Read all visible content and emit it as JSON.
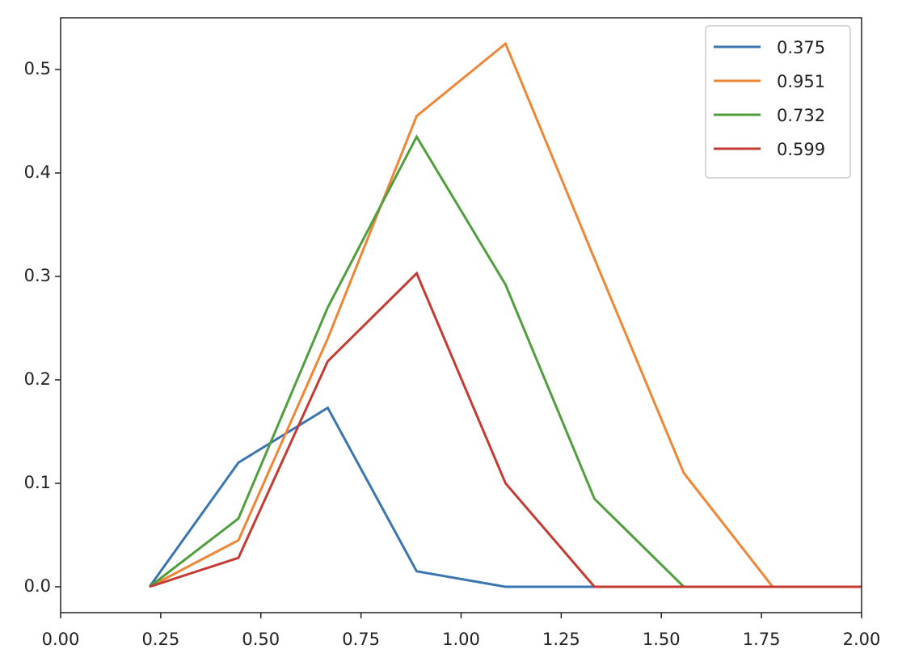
{
  "chart_data": {
    "type": "line",
    "x": [
      0.222,
      0.444,
      0.667,
      0.889,
      1.111,
      1.333,
      1.556,
      1.778,
      2.0
    ],
    "series": [
      {
        "name": "0.375",
        "color": "#3b75af",
        "values": [
          0,
          0.12,
          0.173,
          0.015,
          0,
          0,
          0,
          0,
          0
        ]
      },
      {
        "name": "0.951",
        "color": "#ef8636",
        "values": [
          0,
          0.045,
          0.24,
          0.455,
          0.525,
          0.317,
          0.11,
          0,
          0
        ]
      },
      {
        "name": "0.732",
        "color": "#519e3e",
        "values": [
          0,
          0.066,
          0.27,
          0.435,
          0.292,
          0.085,
          0,
          0,
          0
        ]
      },
      {
        "name": "0.599",
        "color": "#c53a32",
        "values": [
          0,
          0.028,
          0.218,
          0.303,
          0.1,
          0,
          0,
          0,
          0
        ]
      }
    ],
    "xlim": [
      0,
      2
    ],
    "ylim": [
      -0.025,
      0.55
    ],
    "xticks": [
      {
        "value": 0,
        "label": "0.00"
      },
      {
        "value": 0.25,
        "label": "0.25"
      },
      {
        "value": 0.5,
        "label": "0.50"
      },
      {
        "value": 0.75,
        "label": "0.75"
      },
      {
        "value": 1,
        "label": "1.00"
      },
      {
        "value": 1.25,
        "label": "1.25"
      },
      {
        "value": 1.5,
        "label": "1.50"
      },
      {
        "value": 1.75,
        "label": "1.75"
      },
      {
        "value": 2,
        "label": "2.00"
      }
    ],
    "yticks": [
      {
        "value": 0,
        "label": "0.0"
      },
      0.1,
      0.2,
      0.3,
      0.4,
      0.5
    ],
    "legend": "upper right"
  }
}
